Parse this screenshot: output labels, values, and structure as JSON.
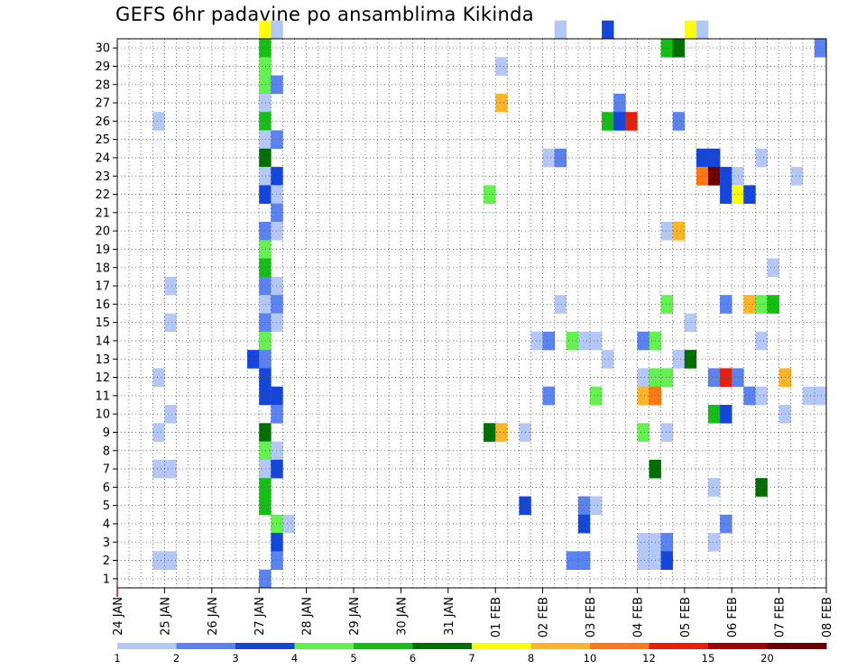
{
  "title": "GEFS 6hr padavine po ansamblima Kikinda",
  "chart_data": {
    "type": "heatmap",
    "title": "GEFS 6hr padavine po ansamblima Kikinda",
    "x_tick_labels": [
      "24 JAN",
      "25 JAN",
      "26 JAN",
      "27 JAN",
      "28 JAN",
      "29 JAN",
      "30 JAN",
      "31 JAN",
      "01 FEB",
      "02 FEB",
      "03 FEB",
      "04 FEB",
      "05 FEB",
      "06 FEB",
      "07 FEB",
      "08 FEB"
    ],
    "x_axis": "6-hour time steps from 24 JAN 00Z (4 steps per day), range 0 to 60",
    "y_tick_labels": [
      "1",
      "2",
      "3",
      "4",
      "5",
      "6",
      "7",
      "8",
      "9",
      "10",
      "11",
      "12",
      "13",
      "14",
      "15",
      "16",
      "17",
      "18",
      "19",
      "20",
      "21",
      "22",
      "23",
      "24",
      "25",
      "26",
      "27",
      "28",
      "29",
      "30"
    ],
    "ylim": [
      0,
      30
    ],
    "grid": true,
    "colorbar": {
      "labels": [
        "1",
        "2",
        "3",
        "4",
        "5",
        "6",
        "7",
        "8",
        "10",
        "12",
        "15",
        "20"
      ],
      "colors": [
        "#b4c8f8",
        "#5a82f0",
        "#1446dc",
        "#64f050",
        "#14be14",
        "#006e00",
        "#ffff00",
        "#ffb428",
        "#ff7814",
        "#e61e0a",
        "#a00000",
        "#6e0000"
      ]
    },
    "cells": [
      [
        12,
        30,
        6
      ],
      [
        13,
        30,
        0
      ],
      [
        37,
        30,
        0
      ],
      [
        41,
        30,
        2
      ],
      [
        48,
        30,
        6
      ],
      [
        49,
        30,
        0
      ],
      [
        12,
        29,
        4
      ],
      [
        46,
        29,
        4
      ],
      [
        47,
        29,
        5
      ],
      [
        59,
        29,
        1
      ],
      [
        12,
        28,
        3
      ],
      [
        32,
        28,
        0
      ],
      [
        12,
        27,
        3
      ],
      [
        13,
        27,
        1
      ],
      [
        12,
        26,
        0
      ],
      [
        32,
        26,
        7
      ],
      [
        42,
        26,
        1
      ],
      [
        3,
        25,
        0
      ],
      [
        12,
        25,
        4
      ],
      [
        41,
        25,
        4
      ],
      [
        42,
        25,
        2
      ],
      [
        43,
        25,
        9
      ],
      [
        47,
        25,
        1
      ],
      [
        12,
        24,
        0
      ],
      [
        13,
        24,
        1
      ],
      [
        12,
        23,
        5
      ],
      [
        36,
        23,
        0
      ],
      [
        37,
        23,
        1
      ],
      [
        49,
        23,
        2
      ],
      [
        50,
        23,
        2
      ],
      [
        54,
        23,
        0
      ],
      [
        12,
        22,
        0
      ],
      [
        13,
        22,
        2
      ],
      [
        49,
        22,
        8
      ],
      [
        50,
        22,
        11
      ],
      [
        51,
        22,
        2
      ],
      [
        52,
        22,
        0
      ],
      [
        57,
        22,
        0
      ],
      [
        12,
        21,
        2
      ],
      [
        13,
        21,
        0
      ],
      [
        31,
        21,
        3
      ],
      [
        51,
        21,
        2
      ],
      [
        52,
        21,
        6
      ],
      [
        53,
        21,
        2
      ],
      [
        13,
        20,
        1
      ],
      [
        12,
        19,
        1
      ],
      [
        13,
        19,
        0
      ],
      [
        46,
        19,
        0
      ],
      [
        47,
        19,
        7
      ],
      [
        12,
        18,
        3
      ],
      [
        12,
        17,
        4
      ],
      [
        55,
        17,
        0
      ],
      [
        4,
        16,
        0
      ],
      [
        12,
        16,
        1
      ],
      [
        13,
        16,
        0
      ],
      [
        12,
        15,
        0
      ],
      [
        13,
        15,
        1
      ],
      [
        37,
        15,
        0
      ],
      [
        46,
        15,
        3
      ],
      [
        51,
        15,
        1
      ],
      [
        53,
        15,
        7
      ],
      [
        54,
        15,
        3
      ],
      [
        55,
        15,
        4
      ],
      [
        4,
        14,
        0
      ],
      [
        12,
        14,
        1
      ],
      [
        13,
        14,
        0
      ],
      [
        48,
        14,
        0
      ],
      [
        12,
        13,
        3
      ],
      [
        35,
        13,
        0
      ],
      [
        36,
        13,
        1
      ],
      [
        38,
        13,
        3
      ],
      [
        39,
        13,
        0
      ],
      [
        40,
        13,
        0
      ],
      [
        44,
        13,
        1
      ],
      [
        45,
        13,
        3
      ],
      [
        54,
        13,
        0
      ],
      [
        11,
        12,
        2
      ],
      [
        12,
        12,
        1
      ],
      [
        41,
        12,
        0
      ],
      [
        47,
        12,
        0
      ],
      [
        48,
        12,
        5
      ],
      [
        3,
        11,
        0
      ],
      [
        12,
        11,
        2
      ],
      [
        44,
        11,
        0
      ],
      [
        45,
        11,
        3
      ],
      [
        46,
        11,
        3
      ],
      [
        50,
        11,
        1
      ],
      [
        51,
        11,
        9
      ],
      [
        52,
        11,
        1
      ],
      [
        56,
        11,
        7
      ],
      [
        12,
        10,
        2
      ],
      [
        13,
        10,
        2
      ],
      [
        36,
        10,
        1
      ],
      [
        40,
        10,
        3
      ],
      [
        44,
        10,
        7
      ],
      [
        45,
        10,
        8
      ],
      [
        53,
        10,
        1
      ],
      [
        54,
        10,
        0
      ],
      [
        58,
        10,
        0
      ],
      [
        59,
        10,
        0
      ],
      [
        4,
        9,
        0
      ],
      [
        13,
        9,
        1
      ],
      [
        50,
        9,
        4
      ],
      [
        51,
        9,
        2
      ],
      [
        56,
        9,
        0
      ],
      [
        3,
        8,
        0
      ],
      [
        12,
        8,
        5
      ],
      [
        31,
        8,
        5
      ],
      [
        32,
        8,
        7
      ],
      [
        34,
        8,
        0
      ],
      [
        44,
        8,
        3
      ],
      [
        46,
        8,
        0
      ],
      [
        12,
        7,
        3
      ],
      [
        13,
        7,
        0
      ],
      [
        3,
        6,
        0
      ],
      [
        4,
        6,
        0
      ],
      [
        12,
        6,
        0
      ],
      [
        13,
        6,
        2
      ],
      [
        45,
        6,
        5
      ],
      [
        12,
        5,
        4
      ],
      [
        50,
        5,
        0
      ],
      [
        54,
        5,
        5
      ],
      [
        12,
        4,
        4
      ],
      [
        34,
        4,
        2
      ],
      [
        39,
        4,
        1
      ],
      [
        40,
        4,
        0
      ],
      [
        13,
        3,
        3
      ],
      [
        14,
        3,
        0
      ],
      [
        39,
        3,
        2
      ],
      [
        51,
        3,
        1
      ],
      [
        13,
        2,
        2
      ],
      [
        44,
        2,
        0
      ],
      [
        45,
        2,
        0
      ],
      [
        46,
        2,
        1
      ],
      [
        50,
        2,
        0
      ],
      [
        3,
        1,
        0
      ],
      [
        4,
        1,
        0
      ],
      [
        13,
        1,
        1
      ],
      [
        38,
        1,
        1
      ],
      [
        39,
        1,
        1
      ],
      [
        44,
        1,
        0
      ],
      [
        45,
        1,
        0
      ],
      [
        46,
        1,
        2
      ],
      [
        12,
        0,
        1
      ]
    ]
  }
}
